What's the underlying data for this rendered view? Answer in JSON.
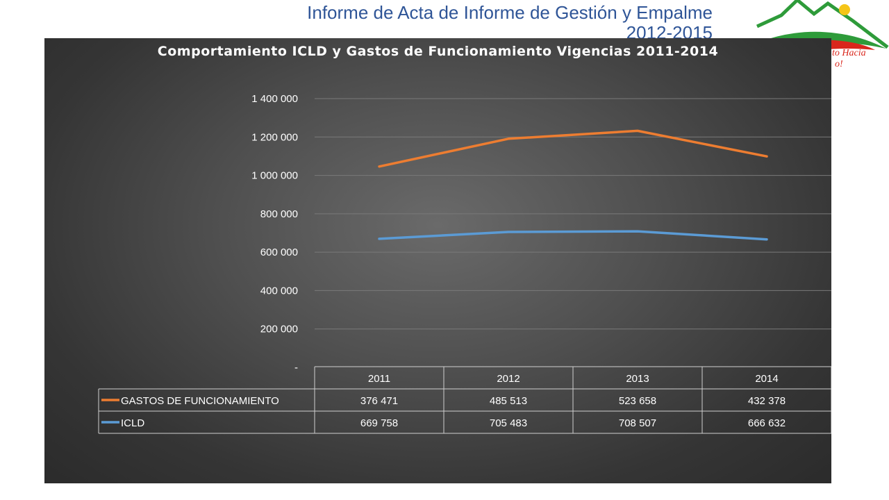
{
  "slide": {
    "title_line1": "Informe de Acta de Informe de Gestión y Empalme",
    "title_line2": "2012-2015",
    "logo_text_line1": "to Hacia",
    "logo_text_line2": "o!"
  },
  "colors": {
    "gastos": "#ed7d31",
    "icld": "#5b9bd5",
    "title_blue": "#2f5597",
    "logo_green": "#2e9b3a",
    "logo_red": "#d9261c",
    "logo_yellow": "#f5c518"
  },
  "chart_data": {
    "type": "line",
    "title": "Comportamiento ICLD y Gastos de Funcionamiento Vigencias 2011-2014",
    "categories": [
      "2011",
      "2012",
      "2013",
      "2014"
    ],
    "ylim": [
      0,
      1400000
    ],
    "yticks": [
      0,
      200000,
      400000,
      600000,
      800000,
      1000000,
      1200000,
      1400000
    ],
    "ytick_labels": [
      "-",
      "200 000",
      "400 000",
      "600 000",
      "800 000",
      "1 000 000",
      "1 200 000",
      "1 400 000"
    ],
    "grid": true,
    "stacked": true,
    "legend": "data-table",
    "series": [
      {
        "name": "GASTOS DE FUNCIONAMIENTO",
        "values": [
          376471,
          485513,
          523658,
          432378
        ],
        "labels": [
          "376 471",
          "485 513",
          "523 658",
          "432 378"
        ]
      },
      {
        "name": "ICLD",
        "values": [
          669758,
          705483,
          708507,
          666632
        ],
        "labels": [
          "669 758",
          "705 483",
          "708 507",
          "666 632"
        ]
      }
    ]
  }
}
